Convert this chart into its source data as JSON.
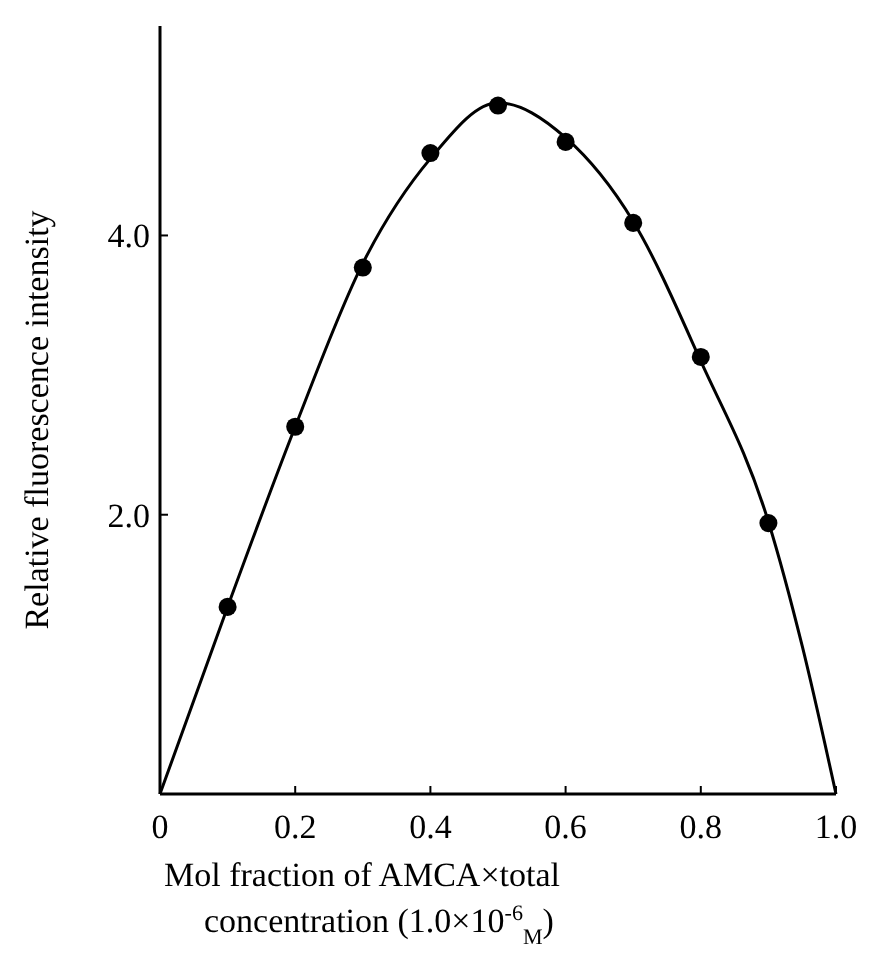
{
  "chart_data": {
    "type": "scatter",
    "xlabel": "Mol fraction of AMCA×total concentration (1.0×10$^{-6}$$_{M}$)",
    "ylabel": "Relative fluorescence intensity",
    "xlim": [
      0,
      1
    ],
    "xticks": [
      0,
      0.2,
      0.4,
      0.6,
      0.8,
      {
        "value": 1,
        "label": "1.0"
      }
    ],
    "ylim": [
      0,
      5.5
    ],
    "yticks": [
      {
        "value": 2,
        "label": "2.0"
      },
      {
        "value": 4,
        "label": "4.0"
      }
    ],
    "series": [
      {
        "color": "#000000",
        "marker": "circle",
        "x": [
          0.1,
          0.2,
          0.3,
          0.4,
          0.5,
          0.6,
          0.7,
          0.8,
          0.9
        ],
        "values": [
          1.34,
          2.63,
          3.77,
          4.59,
          4.93,
          4.67,
          4.09,
          3.13,
          1.94
        ]
      },
      {
        "type": "line",
        "color": "#000000",
        "marker": "none",
        "line_style": "solid",
        "x": [
          0,
          0.1,
          0.2,
          0.3,
          0.4,
          0.5,
          0.6,
          0.7,
          0.8,
          0.9,
          0.95,
          1
        ],
        "values": [
          0,
          1.34,
          2.63,
          3.8,
          4.55,
          4.95,
          4.7,
          4.1,
          3.1,
          1.95,
          1.06,
          0
        ]
      }
    ]
  }
}
